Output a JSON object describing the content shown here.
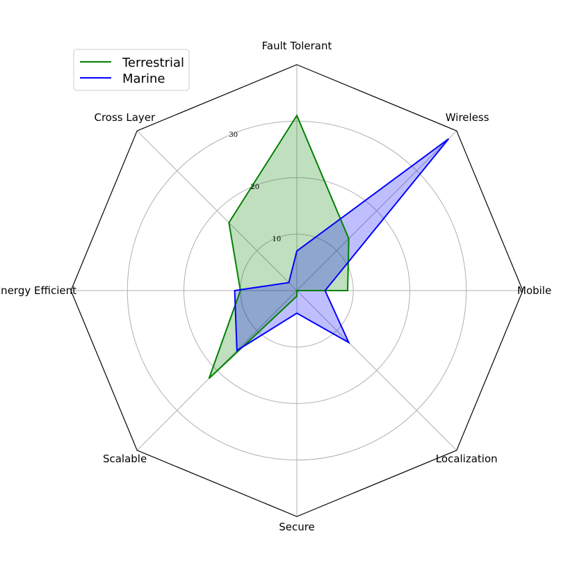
{
  "chart_data": {
    "type": "radar",
    "axes": [
      "Fault Tolerant",
      "Wireless",
      "Mobile",
      "Localization",
      "Secure",
      "Scalable",
      "Energy Efficient",
      "Cross Layer"
    ],
    "rlim": [
      0,
      40
    ],
    "rticks": [
      10,
      20,
      30
    ],
    "rtick_labels": [
      "10",
      "20",
      "30"
    ],
    "grid": true,
    "legend_position": "top-left",
    "series": [
      {
        "name": "Terrestrial",
        "color": "#008000",
        "fill": "#008000",
        "values": [
          31,
          13,
          9,
          0,
          1,
          22,
          10,
          17
        ]
      },
      {
        "name": "Marine",
        "color": "#0000ff",
        "fill": "#0000ff",
        "values": [
          7,
          38,
          5,
          13,
          4,
          15,
          11,
          2
        ]
      }
    ]
  }
}
